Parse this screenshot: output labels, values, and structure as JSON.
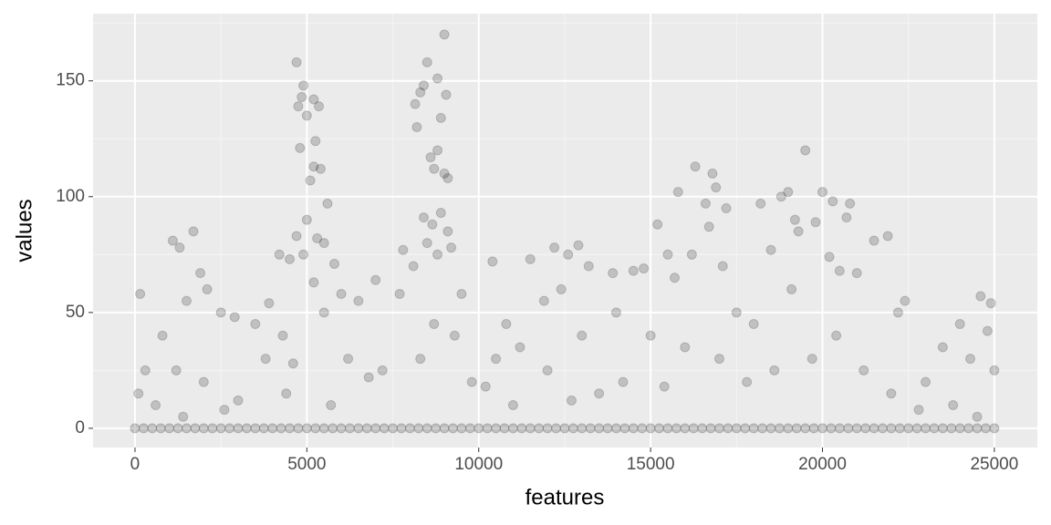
{
  "chart_data": {
    "type": "scatter",
    "x_label": "features",
    "y_label": "values",
    "xlim": [
      -1220,
      26250
    ],
    "ylim": [
      -8.3,
      179
    ],
    "xticks": [
      0,
      5000,
      10000,
      15000,
      20000,
      25000
    ],
    "yticks": [
      0,
      50,
      100,
      150
    ],
    "grid": true,
    "color": "#000000",
    "x": [
      4700,
      4900,
      4850,
      4750,
      5000,
      5200,
      5350,
      4800,
      5250,
      5200,
      5400,
      5100,
      5600,
      5500,
      4700,
      5300,
      4900,
      5000,
      5800,
      5200,
      4500,
      4200,
      3900,
      5500,
      6000,
      6500,
      9000,
      8500,
      8800,
      8400,
      8300,
      8150,
      8200,
      8900,
      9050,
      8600,
      8700,
      8800,
      9100,
      9000,
      8400,
      8650,
      8900,
      9100,
      9200,
      8100,
      8500,
      8800,
      7800,
      7700,
      9500,
      10400,
      150,
      1100,
      1300,
      1700,
      1900,
      2100,
      1500,
      800,
      300,
      100,
      2500,
      2900,
      3500,
      1200,
      2000,
      3000,
      600,
      3800,
      4300,
      4600,
      2600,
      1400,
      12200,
      12600,
      12900,
      13200,
      11900,
      12400,
      13900,
      11500,
      10800,
      11200,
      10500,
      12000,
      13000,
      14000,
      14500,
      14800,
      15200,
      15500,
      15700,
      15800,
      16300,
      16600,
      16800,
      16900,
      17200,
      16700,
      17100,
      17500,
      16200,
      15000,
      14200,
      13500,
      11000,
      9800,
      10200,
      7200,
      6800,
      6200,
      7000,
      18200,
      18800,
      19000,
      19200,
      19500,
      19800,
      20000,
      20300,
      20800,
      20700,
      21500,
      21900,
      19300,
      18500,
      20200,
      20500,
      21000,
      22400,
      22200,
      23500,
      24000,
      24600,
      24900,
      24800,
      25000,
      24300,
      23000,
      22000,
      21200,
      20400,
      19700,
      18000,
      17800,
      17000,
      16000,
      19100,
      23800,
      24500,
      22800,
      4400,
      5700,
      8300,
      9300,
      8700,
      18600,
      15400,
      12700,
      0,
      250,
      500,
      750,
      1000,
      1250,
      1500,
      1750,
      2000,
      2250,
      2500,
      2750,
      3000,
      3250,
      3500,
      3750,
      4000,
      4250,
      4500,
      4750,
      5000,
      5250,
      5500,
      5750,
      6000,
      6250,
      6500,
      6750,
      7000,
      7250,
      7500,
      7750,
      8000,
      8250,
      8500,
      8750,
      9000,
      9250,
      9500,
      9750,
      10000,
      10250,
      10500,
      10750,
      11000,
      11250,
      11500,
      11750,
      12000,
      12250,
      12500,
      12750,
      13000,
      13250,
      13500,
      13750,
      14000,
      14250,
      14500,
      14750,
      15000,
      15250,
      15500,
      15750,
      16000,
      16250,
      16500,
      16750,
      17000,
      17250,
      17500,
      17750,
      18000,
      18250,
      18500,
      18750,
      19000,
      19250,
      19500,
      19750,
      20000,
      20250,
      20500,
      20750,
      21000,
      21250,
      21500,
      21750,
      22000,
      22250,
      22500,
      22750,
      23000,
      23250,
      23500,
      23750,
      24000,
      24250,
      24500,
      24750,
      25000
    ],
    "values": [
      158,
      148,
      143,
      139,
      135,
      142,
      139,
      121,
      124,
      113,
      112,
      107,
      97,
      80,
      83,
      82,
      75,
      90,
      71,
      63,
      73,
      75,
      54,
      50,
      58,
      55,
      170,
      158,
      151,
      148,
      145,
      140,
      130,
      134,
      144,
      117,
      112,
      120,
      108,
      110,
      91,
      88,
      93,
      85,
      78,
      70,
      80,
      75,
      77,
      58,
      58,
      72,
      58,
      81,
      78,
      85,
      67,
      60,
      55,
      40,
      25,
      15,
      50,
      48,
      45,
      25,
      20,
      12,
      10,
      30,
      40,
      28,
      8,
      5,
      78,
      75,
      79,
      70,
      55,
      60,
      67,
      73,
      45,
      35,
      30,
      25,
      40,
      50,
      68,
      69,
      88,
      75,
      65,
      102,
      113,
      97,
      110,
      104,
      95,
      87,
      70,
      50,
      75,
      40,
      20,
      15,
      10,
      20,
      18,
      25,
      22,
      30,
      64,
      97,
      100,
      102,
      90,
      120,
      89,
      102,
      98,
      97,
      91,
      81,
      83,
      85,
      77,
      74,
      68,
      67,
      55,
      50,
      35,
      45,
      57,
      54,
      42,
      25,
      30,
      20,
      15,
      25,
      40,
      30,
      45,
      20,
      30,
      35,
      60,
      10,
      5,
      8,
      15,
      10,
      30,
      40,
      45,
      25,
      18,
      12,
      0,
      0,
      0,
      0,
      0,
      0,
      0,
      0,
      0,
      0,
      0,
      0,
      0,
      0,
      0,
      0,
      0,
      0,
      0,
      0,
      0,
      0,
      0,
      0,
      0,
      0,
      0,
      0,
      0,
      0,
      0,
      0,
      0,
      0,
      0,
      0,
      0,
      0,
      0,
      0,
      0,
      0,
      0,
      0,
      0,
      0,
      0,
      0,
      0,
      0,
      0,
      0,
      0,
      0,
      0,
      0,
      0,
      0,
      0,
      0,
      0,
      0,
      0,
      0,
      0,
      0,
      0,
      0,
      0,
      0,
      0,
      0,
      0,
      0,
      0,
      0,
      0,
      0,
      0,
      0,
      0,
      0,
      0,
      0,
      0,
      0,
      0,
      0,
      0,
      0,
      0,
      0,
      0,
      0,
      0,
      0,
      0,
      0,
      0,
      0,
      0
    ]
  }
}
